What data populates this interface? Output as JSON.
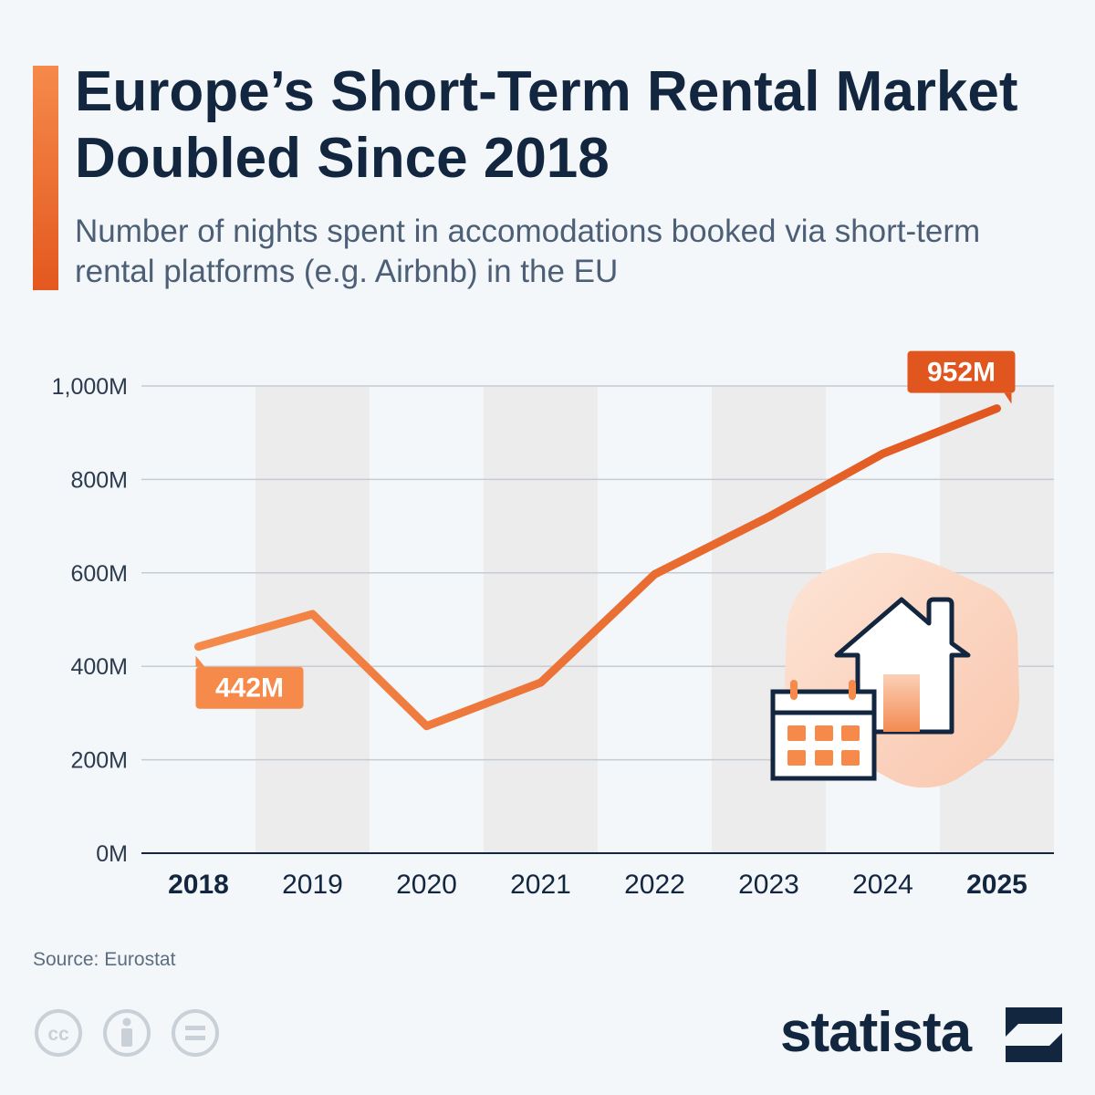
{
  "header": {
    "title": "Europe’s Short-Term Rental Market Doubled Since 2018",
    "subtitle": "Number of nights spent in accomodations booked via short-term rental platforms (e.g. Airbnb) in the EU"
  },
  "footer": {
    "source": "Source: Eurostat",
    "brand": "statista",
    "license_icons": [
      "cc-icon",
      "attribution-icon",
      "no-derivatives-icon"
    ]
  },
  "colors": {
    "background": "#f4f7fa",
    "title": "#13263f",
    "subtitle": "#4c5f77",
    "line_start": "#f58a4b",
    "line_end": "#e0561e",
    "stripe": "#ececec",
    "grid": "#c5ccd4"
  },
  "chart_data": {
    "type": "line",
    "title": "Europe’s Short-Term Rental Market Doubled Since 2018",
    "subtitle": "Number of nights spent in accomodations booked via short-term rental platforms (e.g. Airbnb) in the EU",
    "xlabel": "",
    "ylabel": "",
    "categories": [
      "2018",
      "2019",
      "2020",
      "2021",
      "2022",
      "2023",
      "2024",
      "2025"
    ],
    "bold_categories": [
      "2018",
      "2025"
    ],
    "series": [
      {
        "values": [
          442,
          512,
          272,
          365,
          597,
          720,
          855,
          952
        ]
      }
    ],
    "unit_suffix": "M",
    "ylim": [
      0,
      1000
    ],
    "yticks": [
      0,
      200,
      400,
      600,
      800,
      1000
    ],
    "ytick_labels": [
      "0M",
      "200M",
      "400M",
      "600M",
      "800M",
      "1,000M"
    ],
    "grid": true,
    "alternating_column_shading": true,
    "annotations": [
      {
        "category": "2018",
        "label": "442M"
      },
      {
        "category": "2025",
        "label": "952M"
      }
    ],
    "illustration": [
      "house-icon",
      "calendar-icon"
    ]
  }
}
